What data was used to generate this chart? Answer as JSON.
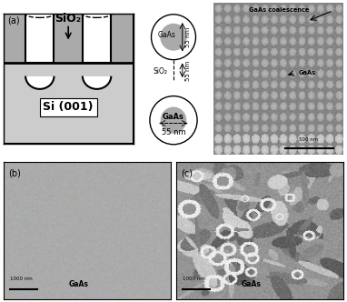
{
  "fig_width": 3.82,
  "fig_height": 3.32,
  "dpi": 100,
  "bg_color": "#ffffff",
  "panel_a_label": "(a)",
  "panel_b_label": "(b)",
  "panel_c_label": "(c)",
  "sio2_label": "SiO₂",
  "si001_label": "Si (001)",
  "gaas_label": "GaAs",
  "gaas_coalescence_label": "GaAs coalescence",
  "sio2_circle_label": "SiO₂",
  "gaas_top_circle_label": "GaAs",
  "gaas_bot_circle_label": "GaAs",
  "scale_500nm": "500 nm",
  "scale_bar_b_label": "1000 nm",
  "scale_bar_c_label": "1000 nm",
  "sio2_color": "#b0b0b0",
  "si_color": "#c8c8c8",
  "hole_color": "#ffffff",
  "border_color": "#000000",
  "sem_top_bg": "#888888",
  "panel_b_gray": 0.67,
  "panel_b_noise": 0.015,
  "panel_c_bg": 0.58
}
